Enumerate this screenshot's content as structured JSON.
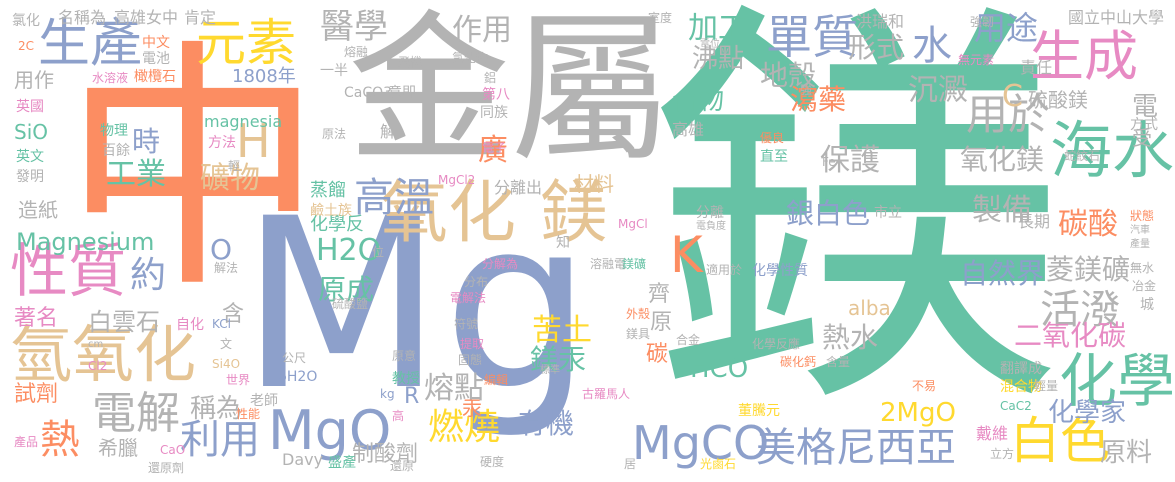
{
  "words": [
    {
      "text": "鎂",
      "color": "#66c2a5"
    },
    {
      "text": "中",
      "color": "#fc8d62"
    },
    {
      "text": "Mg",
      "color": "#8da0cb"
    },
    {
      "text": "金屬",
      "color": "#b3b3b3"
    },
    {
      "text": "氧化",
      "color": "#e5c494"
    },
    {
      "text": "鎂",
      "color": "#e5c494"
    },
    {
      "text": "生產",
      "color": "#8da0cb"
    },
    {
      "text": "元素",
      "color": "#ffd92f"
    },
    {
      "text": "生成",
      "color": "#e78ac3"
    },
    {
      "text": "單質",
      "color": "#8da0cb"
    },
    {
      "text": "海水",
      "color": "#66c2a5"
    },
    {
      "text": "性質",
      "color": "#e78ac3"
    },
    {
      "text": "氫氧化",
      "color": "#e5c494"
    },
    {
      "text": "MgO",
      "color": "#8da0cb"
    },
    {
      "text": "電解",
      "color": "#b3b3b3"
    },
    {
      "text": "化學",
      "color": "#66c2a5"
    },
    {
      "text": "MgCO",
      "color": "#8da0cb"
    },
    {
      "text": "美格尼西亞",
      "color": "#8da0cb"
    },
    {
      "text": "白色",
      "color": "#ffd92f"
    },
    {
      "text": "高溫",
      "color": "#8da0cb"
    },
    {
      "text": "用於",
      "color": "#b3b3b3"
    },
    {
      "text": "活潑",
      "color": "#b3b3b3"
    },
    {
      "text": "熱",
      "color": "#fc8d62"
    },
    {
      "text": "利用",
      "color": "#8da0cb"
    },
    {
      "text": "燃燒",
      "color": "#ffd92f"
    },
    {
      "text": "水",
      "color": "#8da0cb"
    },
    {
      "text": "工業",
      "color": "#66c2a5"
    },
    {
      "text": "H",
      "color": "#e5c494"
    },
    {
      "text": "時",
      "color": "#8da0cb"
    },
    {
      "text": "礦物",
      "color": "#e5c494"
    },
    {
      "text": "約",
      "color": "#8da0cb"
    },
    {
      "text": "醫學",
      "color": "#b3b3b3"
    },
    {
      "text": "作用",
      "color": "#b3b3b3"
    },
    {
      "text": "加工",
      "color": "#66c2a5"
    },
    {
      "text": "用途",
      "color": "#8da0cb"
    },
    {
      "text": "形式",
      "color": "#b3b3b3"
    },
    {
      "text": "地殼",
      "color": "#b3b3b3"
    },
    {
      "text": "沸點",
      "color": "#b3b3b3"
    },
    {
      "text": "合物",
      "color": "#66c2a5"
    },
    {
      "text": "瀉藥",
      "color": "#fc8d62"
    },
    {
      "text": "沉澱",
      "color": "#b3b3b3"
    },
    {
      "text": "保護",
      "color": "#b3b3b3"
    },
    {
      "text": "氧化鎂",
      "color": "#b3b3b3"
    },
    {
      "text": "銀白色",
      "color": "#8da0cb"
    },
    {
      "text": "製備",
      "color": "#b3b3b3"
    },
    {
      "text": "碳酸",
      "color": "#fc8d62"
    },
    {
      "text": "菱鎂礦",
      "color": "#b3b3b3"
    },
    {
      "text": "二氧化碳",
      "color": "#e78ac3"
    },
    {
      "text": "自然界",
      "color": "#8da0cb"
    },
    {
      "text": "化學家",
      "color": "#8da0cb"
    },
    {
      "text": "原料",
      "color": "#b3b3b3"
    },
    {
      "text": "K",
      "color": "#fc8d62"
    },
    {
      "text": "H2O",
      "color": "#66c2a5"
    },
    {
      "text": "原成",
      "color": "#66c2a5"
    },
    {
      "text": "熔點",
      "color": "#b3b3b3"
    },
    {
      "text": "苦土",
      "color": "#ffd92f"
    },
    {
      "text": "鎂汞",
      "color": "#66c2a5"
    },
    {
      "text": "有機",
      "color": "#8da0cb"
    },
    {
      "text": "熱水",
      "color": "#b3b3b3"
    },
    {
      "text": "2MgO",
      "color": "#ffd92f"
    },
    {
      "text": "HCO",
      "color": "#66c2a5"
    },
    {
      "text": "稱為",
      "color": "#b3b3b3"
    },
    {
      "text": "白雲石",
      "color": "#b3b3b3"
    },
    {
      "text": "Magnesium",
      "color": "#66c2a5"
    },
    {
      "text": "造紙",
      "color": "#b3b3b3"
    },
    {
      "text": "著名",
      "color": "#e78ac3"
    },
    {
      "text": "試劑",
      "color": "#fc8d62"
    },
    {
      "text": "希臘",
      "color": "#b3b3b3"
    },
    {
      "text": "蒸餾",
      "color": "#66c2a5"
    },
    {
      "text": "化學反",
      "color": "#66c2a5"
    },
    {
      "text": "分離出",
      "color": "#b3b3b3"
    },
    {
      "text": "材料",
      "color": "#e5c494"
    },
    {
      "text": "制酸劑",
      "color": "#b3b3b3"
    },
    {
      "text": "含",
      "color": "#b3b3b3"
    },
    {
      "text": "O",
      "color": "#8da0cb"
    },
    {
      "text": "R",
      "color": "#8da0cb"
    },
    {
      "text": "碳",
      "color": "#fc8d62"
    },
    {
      "text": "汞",
      "color": "#fc8d62"
    },
    {
      "text": "齊",
      "color": "#b3b3b3"
    },
    {
      "text": "原",
      "color": "#b3b3b3"
    },
    {
      "text": "廣",
      "color": "#fc8d62"
    },
    {
      "text": "alba",
      "color": "#e5c494"
    },
    {
      "text": "硫酸鎂",
      "color": "#b3b3b3"
    },
    {
      "text": "方式",
      "color": "#b3b3b3"
    },
    {
      "text": "C",
      "color": "#e5c494"
    },
    {
      "text": "電",
      "color": "#b3b3b3"
    },
    {
      "text": "受",
      "color": "#b3b3b3"
    },
    {
      "text": "長期",
      "color": "#b3b3b3"
    },
    {
      "text": "責任",
      "color": "#b3b3b3"
    },
    {
      "text": "國立中山大學",
      "color": "#b3b3b3"
    },
    {
      "text": "洪瑞和",
      "color": "#b3b3b3"
    },
    {
      "text": "室度",
      "color": "#b3b3b3"
    },
    {
      "text": "強韌",
      "color": "#b3b3b3"
    },
    {
      "text": "無元素",
      "color": "#e78ac3"
    },
    {
      "text": "高雄",
      "color": "#b3b3b3"
    },
    {
      "text": "高雄女中",
      "color": "#b3b3b3"
    },
    {
      "text": "肯定",
      "color": "#b3b3b3"
    },
    {
      "text": "名稱為",
      "color": "#b3b3b3"
    },
    {
      "text": "氯化",
      "color": "#b3b3b3"
    },
    {
      "text": "1808年",
      "color": "#8da0cb"
    },
    {
      "text": "一半",
      "color": "#b3b3b3"
    },
    {
      "text": "CaCO3",
      "color": "#b3b3b3"
    },
    {
      "text": "意即",
      "color": "#b3b3b3"
    },
    {
      "text": "第八",
      "color": "#e78ac3"
    },
    {
      "text": "同族",
      "color": "#b3b3b3"
    },
    {
      "text": "magnesia",
      "color": "#66c2a5"
    },
    {
      "text": "物理",
      "color": "#66c2a5"
    },
    {
      "text": "方法",
      "color": "#e78ac3"
    },
    {
      "text": "百餘",
      "color": "#b3b3b3"
    },
    {
      "text": "中文",
      "color": "#fc8d62"
    },
    {
      "text": "電池",
      "color": "#b3b3b3"
    },
    {
      "text": "水溶液",
      "color": "#e78ac3"
    },
    {
      "text": "橄欖石",
      "color": "#fc8d62"
    },
    {
      "text": "用作",
      "color": "#b3b3b3"
    },
    {
      "text": "英國",
      "color": "#e78ac3"
    },
    {
      "text": "SiO",
      "color": "#66c2a5"
    },
    {
      "text": "英文",
      "color": "#66c2a5"
    },
    {
      "text": "發明",
      "color": "#b3b3b3"
    },
    {
      "text": "2C",
      "color": "#fc8d62"
    },
    {
      "text": "熔融",
      "color": "#b3b3b3"
    },
    {
      "text": "飛機",
      "color": "#b3b3b3"
    },
    {
      "text": "氯化物",
      "color": "#b3b3b3"
    },
    {
      "text": "鋁",
      "color": "#b3b3b3"
    },
    {
      "text": "原法",
      "color": "#b3b3b3"
    },
    {
      "text": "解",
      "color": "#b3b3b3"
    },
    {
      "text": "電子",
      "color": "#e78ac3"
    },
    {
      "text": "優良",
      "color": "#fc8d62"
    },
    {
      "text": "直至",
      "color": "#66c2a5"
    },
    {
      "text": "Fe",
      "color": "#b3b3b3"
    },
    {
      "text": "蛇紋石",
      "color": "#b3b3b3"
    },
    {
      "text": "強",
      "color": "#b3b3b3"
    },
    {
      "text": "電位",
      "color": "#b3b3b3"
    },
    {
      "text": "MgCl2",
      "color": "#e78ac3"
    },
    {
      "text": "MgCl",
      "color": "#e78ac3"
    },
    {
      "text": "分離",
      "color": "#b3b3b3"
    },
    {
      "text": "電負度",
      "color": "#b3b3b3"
    },
    {
      "text": "市立",
      "color": "#b3b3b3"
    },
    {
      "text": "狀態",
      "color": "#fc8d62"
    },
    {
      "text": "汽車",
      "color": "#b3b3b3"
    },
    {
      "text": "產量",
      "color": "#b3b3b3"
    },
    {
      "text": "無水",
      "color": "#b3b3b3"
    },
    {
      "text": "冶金",
      "color": "#b3b3b3"
    },
    {
      "text": "城",
      "color": "#b3b3b3"
    },
    {
      "text": "輕",
      "color": "#b3b3b3"
    },
    {
      "text": "鹼土族",
      "color": "#e5c494"
    },
    {
      "text": "知",
      "color": "#b3b3b3"
    },
    {
      "text": "溶融電",
      "color": "#b3b3b3"
    },
    {
      "text": "分解為",
      "color": "#e78ac3"
    },
    {
      "text": "鎂礦",
      "color": "#66c2a5"
    },
    {
      "text": "分布",
      "color": "#b3b3b3"
    },
    {
      "text": "電解法",
      "color": "#e78ac3"
    },
    {
      "text": "硫酸鹽",
      "color": "#b3b3b3"
    },
    {
      "text": "適用於",
      "color": "#b3b3b3"
    },
    {
      "text": "化學性質",
      "color": "#8da0cb"
    },
    {
      "text": "解法",
      "color": "#b3b3b3"
    },
    {
      "text": "位",
      "color": "#b3b3b3"
    },
    {
      "text": "自化",
      "color": "#e78ac3"
    },
    {
      "text": "KCl",
      "color": "#8da0cb"
    },
    {
      "text": "文",
      "color": "#b3b3b3"
    },
    {
      "text": "公尺",
      "color": "#b3b3b3"
    },
    {
      "text": "6H2O",
      "color": "#8da0cb"
    },
    {
      "text": "原意",
      "color": "#b3b3b3"
    },
    {
      "text": "教授",
      "color": "#66c2a5"
    },
    {
      "text": "老師",
      "color": "#b3b3b3"
    },
    {
      "text": "世界",
      "color": "#e78ac3"
    },
    {
      "text": "Si4O",
      "color": "#e5c494"
    },
    {
      "text": "性能",
      "color": "#fc8d62"
    },
    {
      "text": "Cl2",
      "color": "#e78ac3"
    },
    {
      "text": "cm",
      "color": "#b3b3b3"
    },
    {
      "text": "CaO",
      "color": "#e78ac3"
    },
    {
      "text": "產品",
      "color": "#e78ac3"
    },
    {
      "text": "還原劑",
      "color": "#b3b3b3"
    },
    {
      "text": "Davy",
      "color": "#b3b3b3"
    },
    {
      "text": "盛產",
      "color": "#66c2a5"
    },
    {
      "text": "硬度",
      "color": "#b3b3b3"
    },
    {
      "text": "還原",
      "color": "#b3b3b3"
    },
    {
      "text": "kg",
      "color": "#8da0cb"
    },
    {
      "text": "高",
      "color": "#e78ac3"
    },
    {
      "text": "編輯",
      "color": "#fc8d62"
    },
    {
      "text": "符號",
      "color": "#b3b3b3"
    },
    {
      "text": "提取",
      "color": "#e78ac3"
    },
    {
      "text": "固態",
      "color": "#b3b3b3"
    },
    {
      "text": "標準",
      "color": "#b3b3b3"
    },
    {
      "text": "外殼",
      "color": "#fc8d62"
    },
    {
      "text": "鎂具",
      "color": "#b3b3b3"
    },
    {
      "text": "合金",
      "color": "#b3b3b3"
    },
    {
      "text": "古羅馬人",
      "color": "#e78ac3"
    },
    {
      "text": "董騰元",
      "color": "#ffd92f"
    },
    {
      "text": "光鹵石",
      "color": "#ffd92f"
    },
    {
      "text": "居",
      "color": "#b3b3b3"
    },
    {
      "text": "碳化鈣",
      "color": "#fc8d62"
    },
    {
      "text": "含量",
      "color": "#b3b3b3"
    },
    {
      "text": "不易",
      "color": "#fc8d62"
    },
    {
      "text": "立方",
      "color": "#b3b3b3"
    },
    {
      "text": "戴維",
      "color": "#e78ac3"
    },
    {
      "text": "CaC2",
      "color": "#66c2a5"
    },
    {
      "text": "翻譯成",
      "color": "#b3b3b3"
    },
    {
      "text": "混合物",
      "color": "#ffd92f"
    },
    {
      "text": "輕量",
      "color": "#b3b3b3"
    },
    {
      "text": "化學反應",
      "color": "#b3b3b3"
    }
  ]
}
